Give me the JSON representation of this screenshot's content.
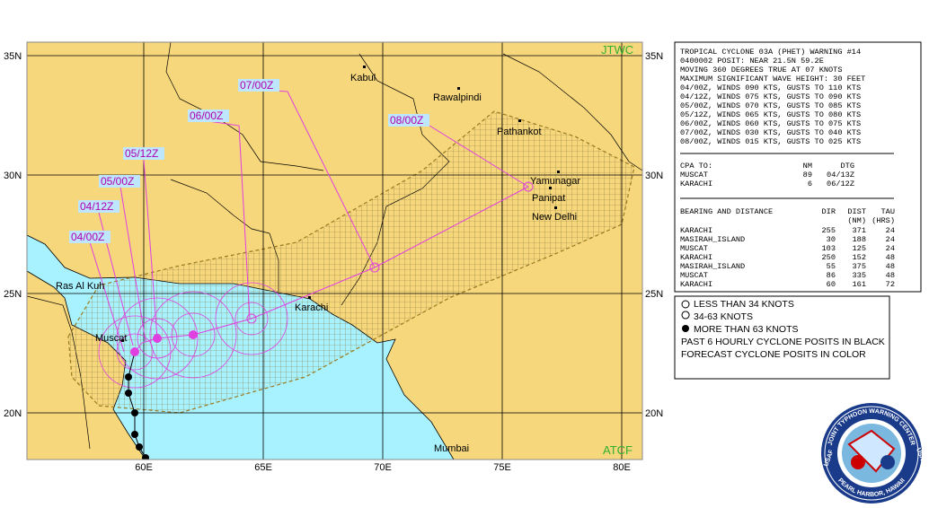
{
  "map": {
    "lat_labels": [
      "35N",
      "30N",
      "25N",
      "20N"
    ],
    "lon_labels": [
      "60E",
      "65E",
      "70E",
      "75E",
      "80E"
    ],
    "corner_top": "JTWC",
    "corner_bottom": "ATCF",
    "cities": [
      "Kabul",
      "Rawalpindi",
      "Pathankot",
      "Yamunagar",
      "Panipat",
      "New Delhi",
      "Karachi",
      "Muscat",
      "Ras Al Kuh",
      "Mumbai"
    ],
    "times": [
      "04/00Z",
      "04/12Z",
      "05/00Z",
      "05/12Z",
      "06/00Z",
      "07/00Z",
      "08/00Z"
    ]
  },
  "warning": {
    "lines": [
      "TROPICAL CYCLONE 03A (PHET) WARNING #14",
      "0400002 POSIT: NEAR 21.5N 59.2E",
      "MOVING 360 DEGREES TRUE AT 07 KNOTS",
      "MAXIMUM SIGNIFICANT WAVE HEIGHT: 30 FEET",
      "04/00Z, WINDS 090 KTS, GUSTS TO 110 KTS",
      "04/12Z, WINDS 075 KTS, GUSTS TO 090 KTS",
      "05/00Z, WINDS 070 KTS, GUSTS TO 085 KTS",
      "05/12Z, WINDS 065 KTS, GUSTS TO 080 KTS",
      "06/00Z, WINDS 060 KTS, GUSTS TO 075 KTS",
      "07/00Z, WINDS 030 KTS, GUSTS TO 040 KTS",
      "08/00Z, WINDS 015 KTS, GUSTS TO 025 KTS"
    ],
    "cpa_header": [
      "CPA TO:",
      "NM",
      "DTG"
    ],
    "cpa_rows": [
      [
        "MUSCAT",
        "89",
        "04/13Z"
      ],
      [
        "KARACHI",
        "6",
        "06/12Z"
      ]
    ],
    "bearing_header": [
      "BEARING AND DISTANCE",
      "DIR",
      "DIST",
      "TAU"
    ],
    "bearing_units": [
      "(NM)",
      "(HRS)"
    ],
    "bearing_rows": [
      [
        "KARACHI",
        "255",
        "371",
        "24"
      ],
      [
        "MASIRAH_ISLAND",
        "30",
        "188",
        "24"
      ],
      [
        "MUSCAT",
        "103",
        "125",
        "24"
      ],
      [
        "KARACHI",
        "250",
        "152",
        "48"
      ],
      [
        "MASIRAH_ISLAND",
        "55",
        "375",
        "48"
      ],
      [
        "MUSCAT",
        "86",
        "335",
        "48"
      ],
      [
        "KARACHI",
        "60",
        "161",
        "72"
      ]
    ]
  },
  "legend": {
    "items": [
      "LESS THAN 34 KNOTS",
      "34-63 KNOTS",
      "MORE THAN 63 KNOTS",
      "PAST 6 HOURLY CYCLONE POSITS IN BLACK",
      "FORECAST CYCLONE POSITS IN COLOR"
    ]
  },
  "logo": {
    "top": "JOINT TYPHOON WARNING CENTER",
    "bottom": "PEARL HARBOR, HAWAII",
    "left": "USAF",
    "right": "USN"
  }
}
